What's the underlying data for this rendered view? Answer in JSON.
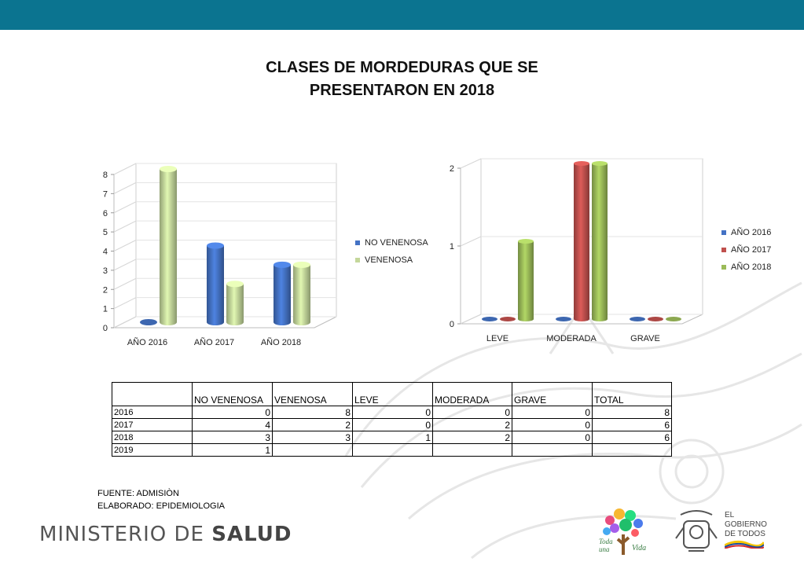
{
  "title": {
    "line1": "CLASES DE MORDEDURAS QUE SE",
    "line2": "PRESENTARON EN  2018"
  },
  "colors": {
    "band": "#0b7490",
    "blue": "#4472c4",
    "red": "#c0504d",
    "lightgreen": "#c4d79b",
    "green": "#9bbb59"
  },
  "chart_data": [
    {
      "type": "bar",
      "categories": [
        "AÑO 2016",
        "AÑO 2017",
        "AÑO 2018"
      ],
      "series": [
        {
          "name": "NO VENENOSA",
          "values": [
            0,
            4,
            3
          ],
          "color": "#4472c4"
        },
        {
          "name": "VENENOSA",
          "values": [
            8,
            2,
            3
          ],
          "color": "#c4d79b"
        }
      ],
      "ylim": [
        0,
        8
      ],
      "yticks": [
        "0",
        "1",
        "2",
        "3",
        "4",
        "5",
        "6",
        "7",
        "8"
      ],
      "legend": "right"
    },
    {
      "type": "bar",
      "categories": [
        "LEVE",
        "MODERADA",
        "GRAVE"
      ],
      "series": [
        {
          "name": "AÑO 2016",
          "values": [
            0,
            0,
            0
          ],
          "color": "#4472c4"
        },
        {
          "name": "AÑO 2017",
          "values": [
            0,
            2,
            0
          ],
          "color": "#c0504d"
        },
        {
          "name": "AÑO 2018",
          "values": [
            1,
            2,
            0
          ],
          "color": "#9bbb59"
        }
      ],
      "ylim": [
        0,
        2
      ],
      "yticks": [
        "0",
        "1",
        "2"
      ],
      "legend": "right"
    }
  ],
  "table": {
    "headers": [
      "",
      "NO VENENOSA",
      "VENENOSA",
      "LEVE",
      "MODERADA",
      "GRAVE",
      "TOTAL"
    ],
    "rows": [
      [
        "2016",
        "0",
        "8",
        "0",
        "0",
        "0",
        "8"
      ],
      [
        "2017",
        "4",
        "2",
        "0",
        "2",
        "0",
        "6"
      ],
      [
        "2018",
        "3",
        "3",
        "1",
        "2",
        "0",
        "6"
      ],
      [
        "2019",
        "1",
        "",
        "",
        "",
        "",
        ""
      ]
    ]
  },
  "footnote": {
    "source": "FUENTE: ADMISIÒN",
    "author": "ELABORADO: EPIDEMIOLOGIA"
  },
  "footer": {
    "ministry_prefix": "MINISTERIO DE ",
    "ministry_bold": "SALUD",
    "gov_logo_line1": "EL",
    "gov_logo_line2": "GOBIERNO",
    "gov_logo_line3": "DE TODOS",
    "tree_logo_text": "Toda una Vida"
  }
}
